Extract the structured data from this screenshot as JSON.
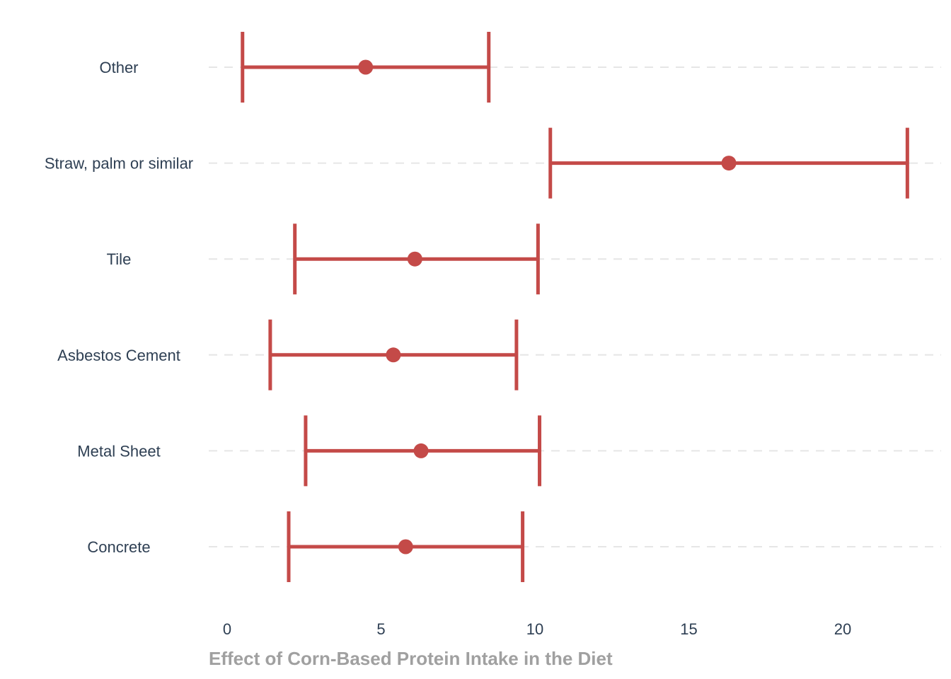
{
  "chart_data": {
    "type": "errorbar",
    "xlabel": "Effect of Corn-Based Protein Intake in the Diet",
    "ylabel": "",
    "xlim": [
      -0.6,
      23.3
    ],
    "xticks": [
      0,
      5,
      10,
      15,
      20
    ],
    "grid": "horizontal dashed",
    "color": "#c44a48",
    "categories": [
      "Other",
      "Straw, palm or similar",
      "Tile",
      "Asbestos Cement",
      "Metal Sheet",
      "Concrete"
    ],
    "estimates": [
      4.5,
      16.3,
      6.1,
      5.4,
      6.3,
      5.8
    ],
    "lower": [
      0.5,
      10.5,
      2.2,
      1.4,
      2.55,
      2.0
    ],
    "upper": [
      8.5,
      22.1,
      10.1,
      9.4,
      10.15,
      9.6
    ]
  }
}
